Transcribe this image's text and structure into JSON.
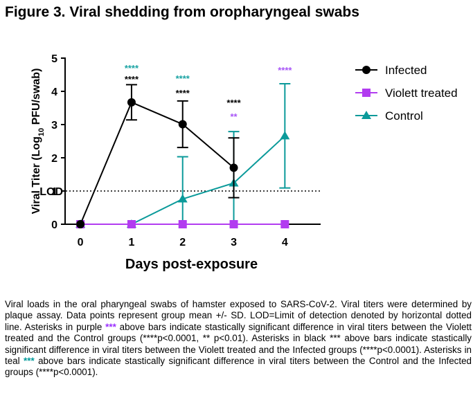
{
  "figure_title": "Figure 3. Viral shedding from oropharyngeal swabs",
  "chart_data": {
    "type": "line",
    "title": "",
    "xlabel": "Days post-exposure",
    "ylabel_parts": [
      "Viral Titer (Log",
      "10",
      " PFU/swab)"
    ],
    "x": [
      0,
      1,
      2,
      3,
      4
    ],
    "xticks": [
      "0",
      "1",
      "2",
      "3",
      "4"
    ],
    "yticks": [
      "0",
      "1",
      "2",
      "3",
      "4",
      "5"
    ],
    "ylim": [
      0,
      5
    ],
    "xlim": [
      -0.3,
      4.7
    ],
    "grid": false,
    "legend_position": "right",
    "lod": {
      "value": 1.0,
      "label": "LOD",
      "style": "dotted"
    },
    "series": [
      {
        "name": "Infected",
        "color": "#000000",
        "marker": "circle",
        "x": [
          0,
          1,
          2,
          3
        ],
        "values": [
          0,
          3.67,
          3.01,
          1.7
        ],
        "sd": [
          null,
          0.53,
          0.7,
          0.9
        ]
      },
      {
        "name": "Violett treated",
        "color": "#b23cf0",
        "marker": "square",
        "x": [
          0,
          1,
          2,
          3,
          4
        ],
        "values": [
          0,
          0,
          0,
          0,
          0
        ],
        "sd": [
          null,
          null,
          null,
          null,
          null
        ]
      },
      {
        "name": "Control",
        "color": "#0b9a9a",
        "marker": "triangle",
        "x": [
          0,
          1,
          2,
          3,
          4
        ],
        "values": [
          0,
          0,
          0.76,
          1.24,
          2.66
        ],
        "sd": [
          null,
          null,
          1.27,
          1.55,
          1.57
        ]
      }
    ],
    "annotations": [
      {
        "x": 1,
        "rows": [
          {
            "text": "****",
            "color": "#1aa3a3"
          },
          {
            "text": "****",
            "color": "#000000"
          }
        ]
      },
      {
        "x": 2,
        "rows": [
          {
            "text": "****",
            "color": "#1aa3a3"
          },
          {
            "text": "****",
            "color": "#000000"
          }
        ]
      },
      {
        "x": 3,
        "rows": [
          {
            "text": "****",
            "color": "#000000"
          },
          {
            "text": "**",
            "color": "#a855f7"
          }
        ]
      },
      {
        "x": 4,
        "rows": [
          {
            "text": "****",
            "color": "#a855f7"
          }
        ]
      }
    ]
  },
  "caption": {
    "p1": "Viral loads in the oral pharyngeal swabs of hamster exposed to SARS-CoV-2. Viral titers were determined by plaque assay. Data points represent group mean +/- SD. LOD=Limit of detection denoted by horizontal dotted line. Asterisks in purple ",
    "star1": "***",
    "p2": " above bars indicate stastically significant difference in viral titers between the Violett treated and the Control groups (****p<0.0001, ** p<0.01). Asterisks in black *** above bars indicate stastically significant difference in viral titers between the Violett treated and the Infected groups (****p<0.0001). Asterisks in teal ",
    "star2": "***",
    "p3": " above bars indicate stastically significant difference in viral titers between the Control and the Infected groups (****p<0.0001)."
  }
}
